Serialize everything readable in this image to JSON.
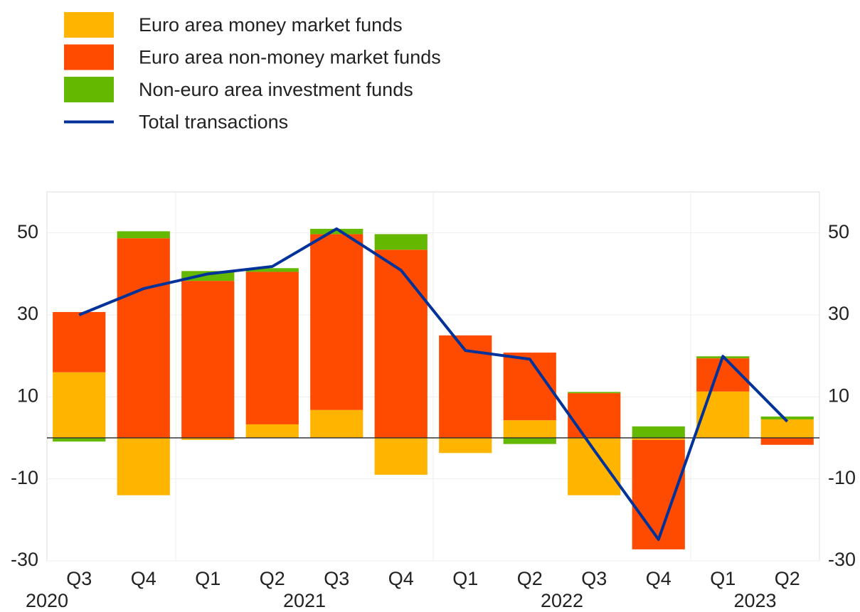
{
  "chart_data": {
    "type": "stacked_bar_line",
    "categories": [
      "Q3",
      "Q4",
      "Q1",
      "Q2",
      "Q3",
      "Q4",
      "Q1",
      "Q2",
      "Q3",
      "Q4",
      "Q1",
      "Q2"
    ],
    "year_groups": [
      {
        "label": "2020",
        "count": 2
      },
      {
        "label": "2021",
        "count": 4
      },
      {
        "label": "2022",
        "count": 4
      },
      {
        "label": "2023",
        "count": 2
      }
    ],
    "series": [
      {
        "name": "Euro area money market funds",
        "color": "#ffb400",
        "values": [
          16,
          -14,
          -0.5,
          3.3,
          6.8,
          -9,
          -3.7,
          4.3,
          -14,
          -0.5,
          11.3,
          4.5
        ]
      },
      {
        "name": "Euro area non-money market funds",
        "color": "#ff4b00",
        "values": [
          14.7,
          48.7,
          38.3,
          37.2,
          42.9,
          45.9,
          25,
          16.5,
          10.9,
          -26.7,
          8.1,
          -1.7
        ]
      },
      {
        "name": "Non-euro area investment funds",
        "color": "#65b800",
        "values": [
          -0.9,
          1.7,
          2.4,
          0.9,
          1.3,
          3.8,
          0,
          -1.5,
          0.3,
          2.8,
          0.5,
          0.7
        ]
      },
      {
        "name": "Total transactions",
        "color": "#003299",
        "line": true,
        "values": [
          30,
          36.4,
          40,
          41.8,
          51,
          40.9,
          21.3,
          19.2,
          -3,
          -24.8,
          19.9,
          4
        ]
      }
    ],
    "ylim": [
      -30,
      60
    ],
    "yticks": [
      -30,
      -10,
      10,
      30,
      50
    ],
    "grid": true,
    "right_axis": true
  }
}
